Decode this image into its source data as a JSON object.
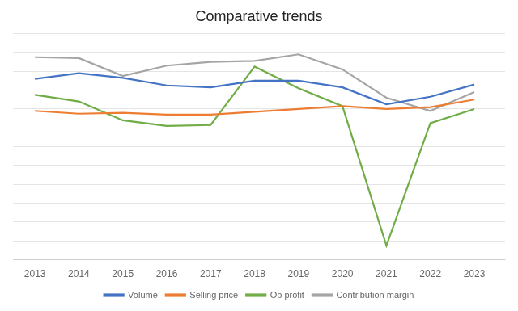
{
  "chart_data": {
    "type": "line",
    "title": "Comparative trends",
    "x": [
      2013,
      2014,
      2015,
      2016,
      2017,
      2018,
      2019,
      2020,
      2021,
      2022,
      2023
    ],
    "series": [
      {
        "name": "Volume",
        "color": "#4472C4",
        "values": [
          82,
          88,
          83,
          75,
          73,
          80,
          80,
          73,
          55,
          63,
          76
        ]
      },
      {
        "name": "Selling price",
        "color": "#ED7D31",
        "values": [
          48,
          45,
          46,
          44,
          44,
          47,
          50,
          53,
          50,
          52,
          60
        ]
      },
      {
        "name": "Op profit",
        "color": "#70AD47",
        "values": [
          65,
          58,
          38,
          32,
          33,
          95,
          72,
          53,
          -95,
          35,
          50
        ]
      },
      {
        "name": "Contribution margin",
        "color": "#A5A5A5",
        "values": [
          105,
          104,
          85,
          96,
          100,
          101,
          108,
          92,
          62,
          48,
          68
        ]
      }
    ],
    "xlim": [
      2012.5,
      2023.7
    ],
    "xticks": [
      2013,
      2014,
      2015,
      2016,
      2017,
      2018,
      2019,
      2020,
      2021,
      2022,
      2023
    ],
    "ylim": [
      -110,
      130
    ],
    "yticks": [
      -110,
      -90,
      -70,
      -50,
      -30,
      -10,
      10,
      30,
      50,
      70,
      90,
      110,
      130
    ],
    "grid": "y",
    "tick_labels": "x",
    "legend": "bottom"
  }
}
